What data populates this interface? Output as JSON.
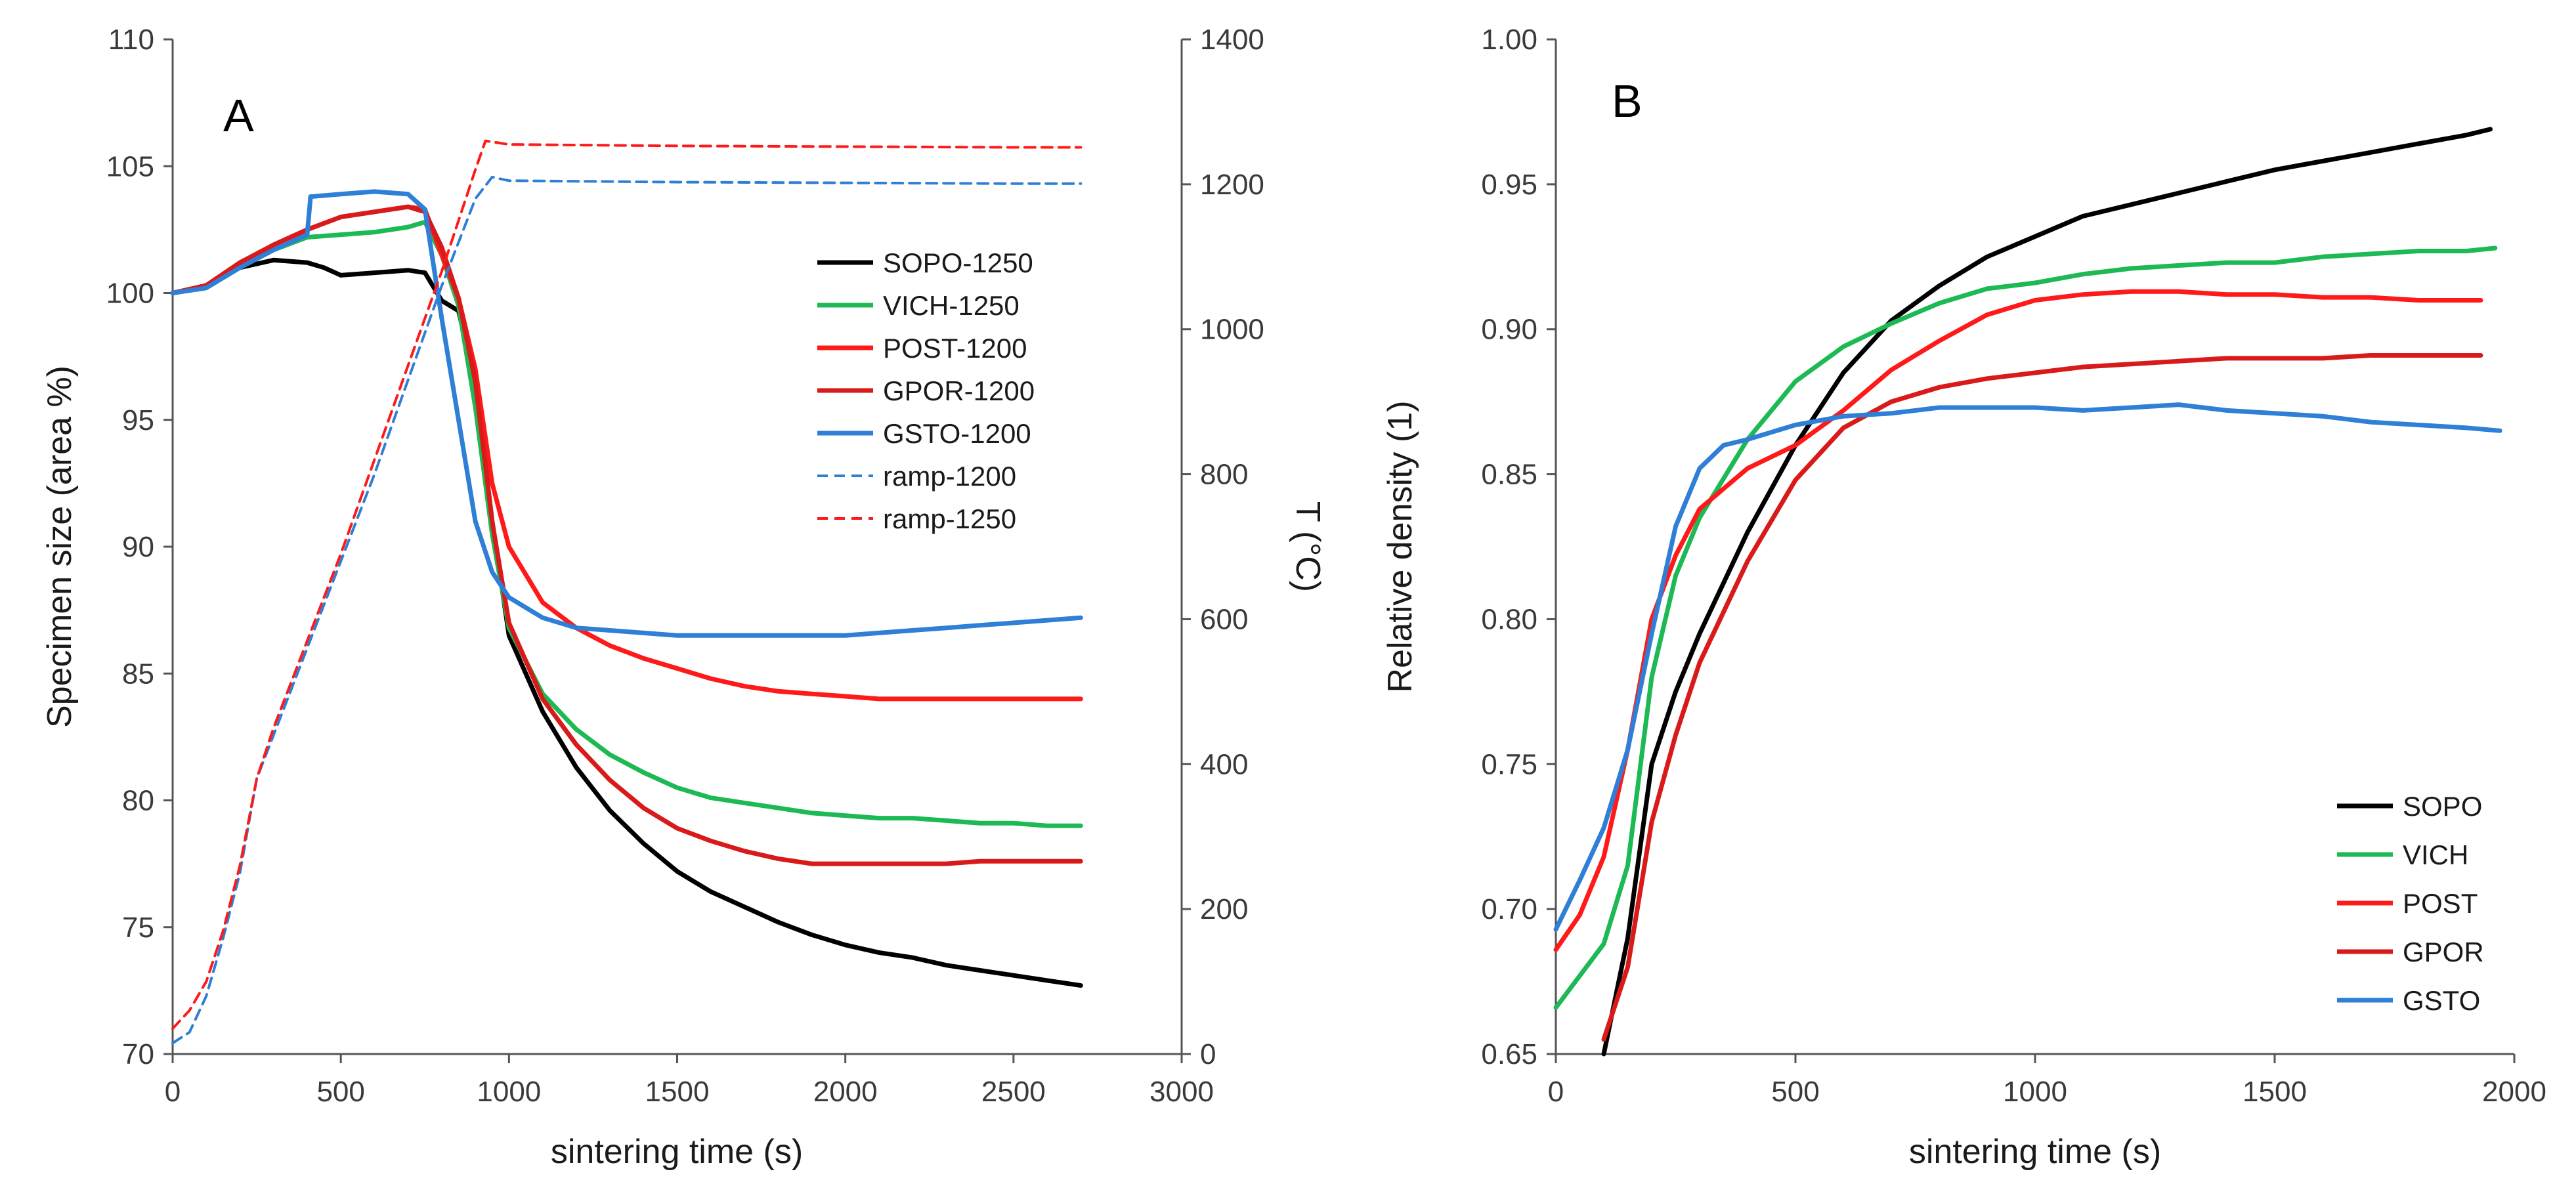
{
  "colors": {
    "SOPO": "#000000",
    "VICH": "#1db954",
    "POST": "#ff1a1a",
    "GPOR": "#d91a1a",
    "GSTO": "#2f7fd6",
    "ramp-1200": "#2f7fd6",
    "ramp-1250": "#ff1a1a"
  },
  "chart_data": [
    {
      "panel": "A",
      "type": "line",
      "xlabel": "sintering time (s)",
      "ylabel": "Specimen size (area %)",
      "y2label": "T (°C)",
      "xlim": [
        0,
        3000
      ],
      "ylim": [
        70,
        110
      ],
      "y2lim": [
        0,
        1400
      ],
      "xticks": [
        0,
        500,
        1000,
        1500,
        2000,
        2500,
        3000
      ],
      "yticks": [
        70,
        75,
        80,
        85,
        90,
        95,
        100,
        105,
        110
      ],
      "y2ticks": [
        0,
        200,
        400,
        600,
        800,
        1000,
        1200,
        1400
      ],
      "legend_position": "right",
      "series": [
        {
          "name": "SOPO-1250",
          "axis": "left",
          "style": "solid",
          "x": [
            0,
            100,
            200,
            300,
            400,
            450,
            500,
            600,
            700,
            750,
            800,
            850,
            900,
            950,
            1000,
            1100,
            1200,
            1300,
            1400,
            1500,
            1600,
            1700,
            1800,
            1900,
            2000,
            2100,
            2200,
            2300,
            2400,
            2500,
            2600,
            2700
          ],
          "y": [
            100,
            100.3,
            101,
            101.3,
            101.2,
            101,
            100.7,
            100.8,
            100.9,
            100.8,
            99.7,
            99.3,
            96.5,
            91,
            86.5,
            83.5,
            81.3,
            79.6,
            78.3,
            77.2,
            76.4,
            75.8,
            75.2,
            74.7,
            74.3,
            74,
            73.8,
            73.5,
            73.3,
            73.1,
            72.9,
            72.7
          ]
        },
        {
          "name": "VICH-1250",
          "axis": "left",
          "style": "solid",
          "x": [
            0,
            100,
            200,
            300,
            400,
            500,
            600,
            700,
            750,
            800,
            850,
            900,
            950,
            1000,
            1100,
            1200,
            1300,
            1400,
            1500,
            1600,
            1700,
            1800,
            1900,
            2000,
            2100,
            2200,
            2300,
            2400,
            2500,
            2600,
            2700
          ],
          "y": [
            100,
            100.3,
            101,
            101.7,
            102.2,
            102.3,
            102.4,
            102.6,
            102.8,
            101.5,
            99.5,
            95.5,
            90.5,
            86.8,
            84.2,
            82.8,
            81.8,
            81.1,
            80.5,
            80.1,
            79.9,
            79.7,
            79.5,
            79.4,
            79.3,
            79.3,
            79.2,
            79.1,
            79.1,
            79,
            79
          ]
        },
        {
          "name": "POST-1200",
          "axis": "left",
          "style": "solid",
          "x": [
            0,
            100,
            200,
            300,
            400,
            500,
            600,
            700,
            750,
            800,
            850,
            900,
            950,
            1000,
            1100,
            1200,
            1300,
            1400,
            1500,
            1600,
            1700,
            1800,
            1900,
            2000,
            2100,
            2200,
            2300,
            2400,
            2500,
            2600,
            2700
          ],
          "y": [
            100,
            100.3,
            101.2,
            101.9,
            102.5,
            103,
            103.2,
            103.4,
            103.3,
            101.5,
            99.8,
            97,
            92.5,
            90,
            87.8,
            86.8,
            86.1,
            85.6,
            85.2,
            84.8,
            84.5,
            84.3,
            84.2,
            84.1,
            84,
            84,
            84,
            84,
            84,
            84,
            84
          ]
        },
        {
          "name": "GPOR-1200",
          "axis": "left",
          "style": "solid",
          "x": [
            0,
            100,
            200,
            300,
            400,
            500,
            600,
            700,
            750,
            800,
            850,
            900,
            950,
            1000,
            1100,
            1200,
            1300,
            1400,
            1500,
            1600,
            1700,
            1800,
            1900,
            2000,
            2100,
            2200,
            2300,
            2400,
            2500,
            2600,
            2700
          ],
          "y": [
            100,
            100.3,
            101.2,
            101.9,
            102.5,
            103,
            103.2,
            103.4,
            103.2,
            101.8,
            99.8,
            96.5,
            91,
            87,
            84,
            82.2,
            80.8,
            79.7,
            78.9,
            78.4,
            78,
            77.7,
            77.5,
            77.5,
            77.5,
            77.5,
            77.5,
            77.6,
            77.6,
            77.6,
            77.6
          ]
        },
        {
          "name": "GSTO-1200",
          "axis": "left",
          "style": "solid",
          "x": [
            0,
            100,
            200,
            300,
            400,
            410,
            500,
            600,
            700,
            750,
            800,
            850,
            900,
            950,
            1000,
            1100,
            1200,
            1300,
            1400,
            1500,
            1600,
            1700,
            1800,
            1900,
            2000,
            2100,
            2200,
            2300,
            2400,
            2500,
            2600,
            2700
          ],
          "y": [
            100,
            100.2,
            101,
            101.7,
            102.3,
            103.8,
            103.9,
            104,
            103.9,
            103.3,
            99,
            95,
            91,
            89,
            88,
            87.2,
            86.8,
            86.7,
            86.6,
            86.5,
            86.5,
            86.5,
            86.5,
            86.5,
            86.5,
            86.6,
            86.7,
            86.8,
            86.9,
            87,
            87.1,
            87.2
          ]
        },
        {
          "name": "ramp-1200",
          "axis": "right",
          "style": "dashed",
          "x": [
            0,
            50,
            100,
            150,
            200,
            250,
            300,
            400,
            500,
            600,
            700,
            800,
            900,
            950,
            1000,
            1500,
            2000,
            2500,
            2700
          ],
          "y": [
            15,
            30,
            80,
            160,
            250,
            380,
            440,
            560,
            680,
            800,
            930,
            1060,
            1180,
            1210,
            1205,
            1203,
            1202,
            1201,
            1201
          ]
        },
        {
          "name": "ramp-1250",
          "axis": "right",
          "style": "dashed",
          "x": [
            0,
            50,
            100,
            150,
            200,
            250,
            300,
            400,
            500,
            600,
            700,
            800,
            900,
            930,
            1000,
            1500,
            2000,
            2500,
            2700
          ],
          "y": [
            35,
            60,
            100,
            170,
            260,
            380,
            450,
            570,
            690,
            820,
            950,
            1080,
            1220,
            1260,
            1255,
            1253,
            1252,
            1251,
            1251
          ]
        }
      ]
    },
    {
      "panel": "B",
      "type": "line",
      "xlabel": "sintering time (s)",
      "ylabel": "Relative density (1)",
      "xlim": [
        0,
        2000
      ],
      "ylim": [
        0.65,
        1.0
      ],
      "xticks": [
        0,
        500,
        1000,
        1500,
        2000
      ],
      "yticks": [
        0.65,
        0.7,
        0.75,
        0.8,
        0.85,
        0.9,
        0.95,
        1.0
      ],
      "legend_position": "bottom-right",
      "series": [
        {
          "name": "SOPO",
          "x": [
            100,
            150,
            200,
            250,
            300,
            400,
            500,
            600,
            700,
            800,
            900,
            1000,
            1100,
            1200,
            1300,
            1400,
            1500,
            1600,
            1700,
            1800,
            1900,
            1950
          ],
          "y": [
            0.65,
            0.69,
            0.75,
            0.775,
            0.795,
            0.83,
            0.86,
            0.885,
            0.903,
            0.915,
            0.925,
            0.932,
            0.939,
            0.943,
            0.947,
            0.951,
            0.955,
            0.958,
            0.961,
            0.964,
            0.967,
            0.969
          ]
        },
        {
          "name": "VICH",
          "x": [
            0,
            50,
            100,
            150,
            200,
            250,
            300,
            400,
            500,
            600,
            700,
            800,
            900,
            1000,
            1100,
            1200,
            1300,
            1400,
            1500,
            1600,
            1700,
            1800,
            1900,
            1960
          ],
          "y": [
            0.666,
            0.677,
            0.688,
            0.715,
            0.78,
            0.815,
            0.835,
            0.862,
            0.882,
            0.894,
            0.902,
            0.909,
            0.914,
            0.916,
            0.919,
            0.921,
            0.922,
            0.923,
            0.923,
            0.925,
            0.926,
            0.927,
            0.927,
            0.928
          ]
        },
        {
          "name": "POST",
          "x": [
            0,
            50,
            100,
            150,
            200,
            250,
            300,
            400,
            500,
            600,
            700,
            800,
            900,
            1000,
            1100,
            1200,
            1300,
            1400,
            1500,
            1600,
            1700,
            1800,
            1900,
            1930
          ],
          "y": [
            0.686,
            0.698,
            0.718,
            0.755,
            0.8,
            0.822,
            0.838,
            0.852,
            0.86,
            0.872,
            0.886,
            0.896,
            0.905,
            0.91,
            0.912,
            0.913,
            0.913,
            0.912,
            0.912,
            0.911,
            0.911,
            0.91,
            0.91,
            0.91
          ]
        },
        {
          "name": "GPOR",
          "x": [
            100,
            150,
            200,
            250,
            300,
            400,
            500,
            600,
            700,
            800,
            900,
            1000,
            1100,
            1200,
            1300,
            1400,
            1500,
            1600,
            1700,
            1800,
            1900,
            1930
          ],
          "y": [
            0.655,
            0.68,
            0.73,
            0.76,
            0.785,
            0.82,
            0.848,
            0.866,
            0.875,
            0.88,
            0.883,
            0.885,
            0.887,
            0.888,
            0.889,
            0.89,
            0.89,
            0.89,
            0.891,
            0.891,
            0.891,
            0.891
          ]
        },
        {
          "name": "GSTO",
          "x": [
            0,
            50,
            100,
            150,
            200,
            250,
            300,
            350,
            400,
            500,
            600,
            700,
            800,
            900,
            1000,
            1100,
            1200,
            1300,
            1400,
            1500,
            1600,
            1700,
            1800,
            1900,
            1970
          ],
          "y": [
            0.693,
            0.71,
            0.728,
            0.755,
            0.795,
            0.832,
            0.852,
            0.86,
            0.862,
            0.867,
            0.87,
            0.871,
            0.873,
            0.873,
            0.873,
            0.872,
            0.873,
            0.874,
            0.872,
            0.871,
            0.87,
            0.868,
            0.867,
            0.866,
            0.865
          ]
        }
      ]
    }
  ]
}
